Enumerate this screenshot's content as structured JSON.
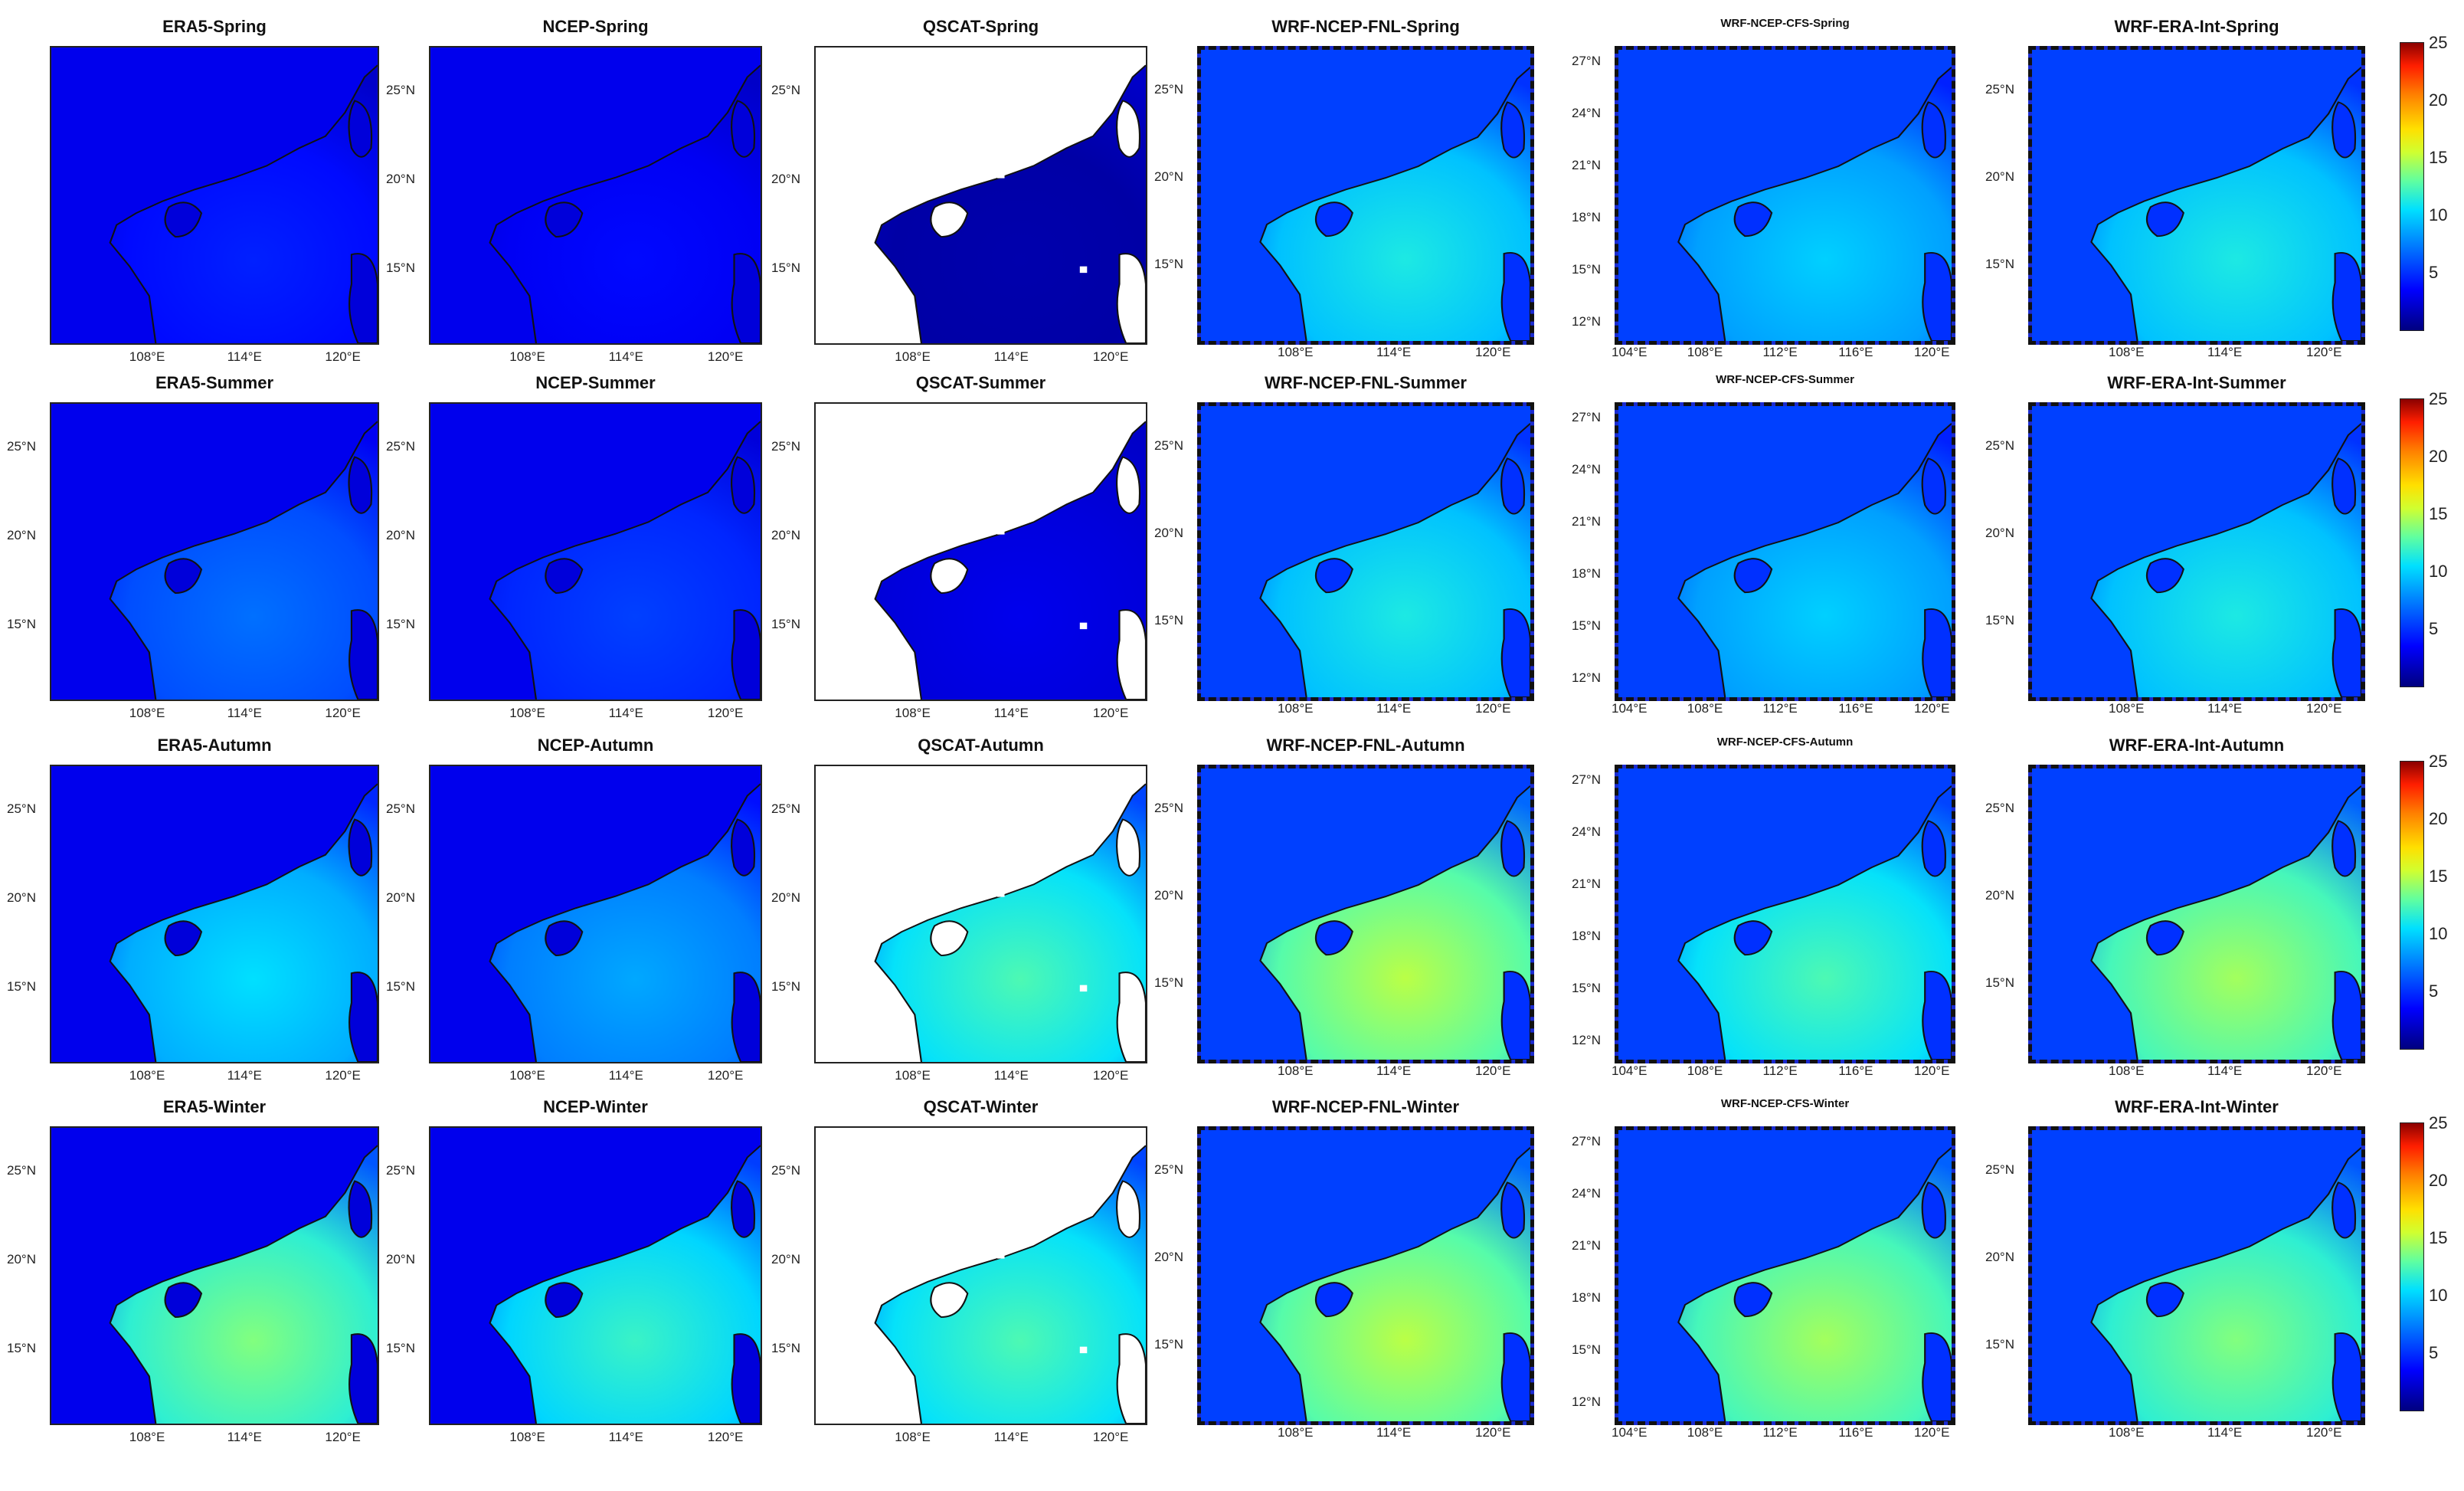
{
  "colorbar": {
    "ticks": [
      "5",
      "10",
      "15",
      "20",
      "25"
    ],
    "range": [
      0,
      25
    ]
  },
  "rows": [
    {
      "season": "Spring",
      "panels": [
        {
          "title": "ERA5-Spring",
          "lat": [],
          "lon": [
            "108°E",
            "114°E",
            "120°E"
          ],
          "level": 0.18
        },
        {
          "title": "NCEP-Spring",
          "lat": [
            "25°N",
            "20°N",
            "15°N"
          ],
          "lon": [
            "108°E",
            "114°E",
            "120°E"
          ],
          "level": 0.15
        },
        {
          "title": "QSCAT-Spring",
          "lat": [
            "25°N",
            "20°N",
            "15°N"
          ],
          "lon": [
            "108°E",
            "114°E",
            "120°E"
          ],
          "level": 0.05
        },
        {
          "title": "WRF-NCEP-FNL-Spring",
          "lat": [
            "25°N",
            "20°N",
            "15°N"
          ],
          "lon": [
            "108°E",
            "114°E",
            "120°E"
          ],
          "level": 0.45
        },
        {
          "title": "WRF-NCEP-CFS-Spring",
          "lat": [
            "27°N",
            "24°N",
            "21°N",
            "18°N",
            "15°N",
            "12°N"
          ],
          "lon": [
            "104°E",
            "108°E",
            "112°E",
            "116°E",
            "120°E"
          ],
          "level": 0.4
        },
        {
          "title": "WRF-ERA-Int-Spring",
          "lat": [
            "25°N",
            "20°N",
            "15°N"
          ],
          "lon": [
            "108°E",
            "114°E",
            "120°E"
          ],
          "level": 0.45
        }
      ]
    },
    {
      "season": "Summer",
      "panels": [
        {
          "title": "ERA5-Summer",
          "lat": [
            "25°N",
            "20°N",
            "15°N"
          ],
          "lon": [
            "108°E",
            "114°E",
            "120°E"
          ],
          "level": 0.28
        },
        {
          "title": "NCEP-Summer",
          "lat": [
            "25°N",
            "20°N",
            "15°N"
          ],
          "lon": [
            "108°E",
            "114°E",
            "120°E"
          ],
          "level": 0.22
        },
        {
          "title": "QSCAT-Summer",
          "lat": [
            "25°N",
            "20°N",
            "15°N"
          ],
          "lon": [
            "108°E",
            "114°E",
            "120°E"
          ],
          "level": 0.12
        },
        {
          "title": "WRF-NCEP-FNL-Summer",
          "lat": [
            "25°N",
            "20°N",
            "15°N"
          ],
          "lon": [
            "108°E",
            "114°E",
            "120°E"
          ],
          "level": 0.45
        },
        {
          "title": "WRF-NCEP-CFS-Summer",
          "lat": [
            "27°N",
            "24°N",
            "21°N",
            "18°N",
            "15°N",
            "12°N"
          ],
          "lon": [
            "104°E",
            "108°E",
            "112°E",
            "116°E",
            "120°E"
          ],
          "level": 0.4
        },
        {
          "title": "WRF-ERA-Int-Summer",
          "lat": [
            "25°N",
            "20°N",
            "15°N"
          ],
          "lon": [
            "108°E",
            "114°E",
            "120°E"
          ],
          "level": 0.45
        }
      ]
    },
    {
      "season": "Autumn",
      "panels": [
        {
          "title": "ERA5-Autumn",
          "lat": [
            "25°N",
            "20°N",
            "15°N"
          ],
          "lon": [
            "108°E",
            "114°E",
            "120°E"
          ],
          "level": 0.42
        },
        {
          "title": "NCEP-Autumn",
          "lat": [
            "25°N",
            "20°N",
            "15°N"
          ],
          "lon": [
            "108°E",
            "114°E",
            "120°E"
          ],
          "level": 0.35
        },
        {
          "title": "QSCAT-Autumn",
          "lat": [
            "25°N",
            "20°N",
            "15°N"
          ],
          "lon": [
            "108°E",
            "114°E",
            "120°E"
          ],
          "level": 0.5
        },
        {
          "title": "WRF-NCEP-FNL-Autumn",
          "lat": [
            "25°N",
            "20°N",
            "15°N"
          ],
          "lon": [
            "108°E",
            "114°E",
            "120°E"
          ],
          "level": 0.6
        },
        {
          "title": "WRF-NCEP-CFS-Autumn",
          "lat": [
            "27°N",
            "24°N",
            "21°N",
            "18°N",
            "15°N",
            "12°N"
          ],
          "lon": [
            "104°E",
            "108°E",
            "112°E",
            "116°E",
            "120°E"
          ],
          "level": 0.5
        },
        {
          "title": "WRF-ERA-Int-Autumn",
          "lat": [
            "25°N",
            "20°N",
            "15°N"
          ],
          "lon": [
            "108°E",
            "114°E",
            "120°E"
          ],
          "level": 0.58
        }
      ]
    },
    {
      "season": "Winter",
      "panels": [
        {
          "title": "ERA5-Winter",
          "lat": [
            "25°N",
            "20°N",
            "15°N"
          ],
          "lon": [
            "108°E",
            "114°E",
            "120°E"
          ],
          "level": 0.55
        },
        {
          "title": "NCEP-Winter",
          "lat": [
            "25°N",
            "20°N",
            "15°N"
          ],
          "lon": [
            "108°E",
            "114°E",
            "120°E"
          ],
          "level": 0.48
        },
        {
          "title": "QSCAT-Winter",
          "lat": [
            "25°N",
            "20°N",
            "15°N"
          ],
          "lon": [
            "108°E",
            "114°E",
            "120°E"
          ],
          "level": 0.5
        },
        {
          "title": "WRF-NCEP-FNL-Winter",
          "lat": [
            "25°N",
            "20°N",
            "15°N"
          ],
          "lon": [
            "108°E",
            "114°E",
            "120°E"
          ],
          "level": 0.6
        },
        {
          "title": "WRF-NCEP-CFS-Winter",
          "lat": [
            "27°N",
            "24°N",
            "21°N",
            "18°N",
            "15°N",
            "12°N"
          ],
          "lon": [
            "104°E",
            "108°E",
            "112°E",
            "116°E",
            "120°E"
          ],
          "level": 0.58
        },
        {
          "title": "WRF-ERA-Int-Winter",
          "lat": [
            "25°N",
            "20°N",
            "15°N"
          ],
          "lon": [
            "108°E",
            "114°E",
            "120°E"
          ],
          "level": 0.55
        }
      ]
    }
  ]
}
